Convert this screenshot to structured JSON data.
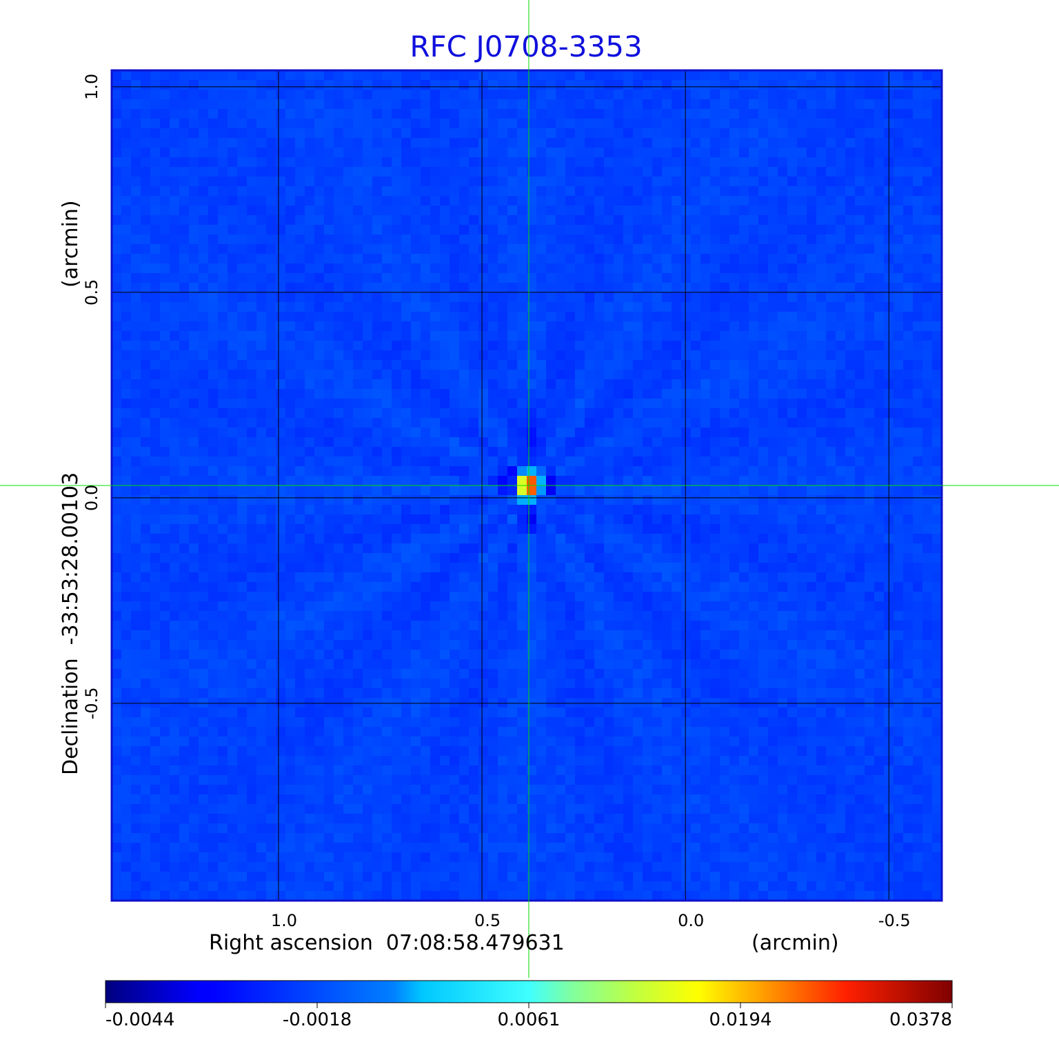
{
  "chart_data": {
    "type": "heatmap",
    "title": "RFC J0708-3353",
    "x_axis": {
      "label": "Right ascension  07:08:58.479631",
      "unit_label": "(arcmin)",
      "ticks": [
        "1.0",
        "0.5",
        "0.0",
        "-0.5"
      ],
      "tick_values": [
        1.0,
        0.5,
        0.0,
        -0.5
      ],
      "range": [
        1.41,
        -0.63
      ]
    },
    "y_axis": {
      "label": "Declination  -33:53:28.00103",
      "unit_label": "(arcmin)",
      "ticks": [
        "1.0",
        "0.5",
        "0.0",
        "-0.5"
      ],
      "tick_values": [
        1.0,
        0.5,
        0.0,
        -0.5
      ],
      "range": [
        -0.98,
        1.04
      ]
    },
    "grid": true,
    "crosshair": {
      "x": 0.385,
      "y": 0.03,
      "color": "#00dd00"
    },
    "colormap": "jet",
    "colorbar": {
      "placement": "bottom",
      "ticks": [
        "-0.0044",
        "-0.0018",
        "0.0061",
        "0.0194",
        "0.0378"
      ],
      "tick_values": [
        -0.0044,
        -0.0018,
        0.0061,
        0.0194,
        0.0378
      ]
    },
    "value_range": [
      -0.0044,
      0.0378
    ],
    "source": {
      "peak_x": 0.385,
      "peak_y": 0.02,
      "peak_value": 0.0378
    }
  }
}
